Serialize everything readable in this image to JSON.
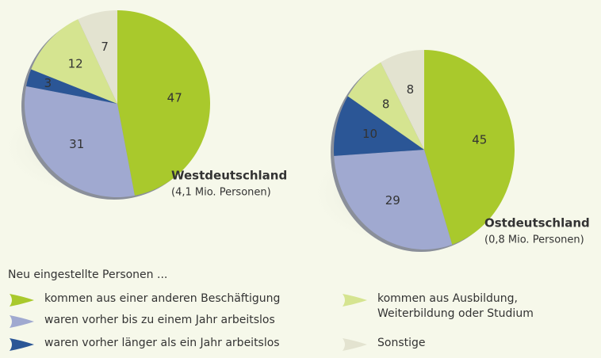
{
  "chart_data": [
    {
      "type": "pie",
      "title": "Westdeutschland",
      "subtitle": "(4,1 Mio. Personen)",
      "values": [
        47,
        31,
        3,
        12,
        7
      ],
      "colors": [
        "#a9c92c",
        "#a0a9d0",
        "#2b5696",
        "#d5e490",
        "#e3e3d0"
      ]
    },
    {
      "type": "pie",
      "title": "Ostdeutschland",
      "subtitle": "(0,8 Mio. Personen)",
      "values": [
        45,
        29,
        10,
        8,
        8
      ],
      "colors": [
        "#a9c92c",
        "#a0a9d0",
        "#2b5696",
        "#d5e490",
        "#e3e3d0"
      ]
    }
  ],
  "legend": {
    "title": "Neu eingestellte Personen ...",
    "labels": [
      "kommen aus einer anderen Beschäftigung",
      "waren vorher bis zu einem Jahr arbeitslos",
      "waren vorher länger als ein Jahr arbeitslos",
      "kommen aus Ausbildung, Weiterbildung oder Studium",
      "Sonstige"
    ],
    "colors": [
      "#a9c92c",
      "#a0a9d0",
      "#2b5696",
      "#d5e490",
      "#e3e3d0"
    ]
  }
}
